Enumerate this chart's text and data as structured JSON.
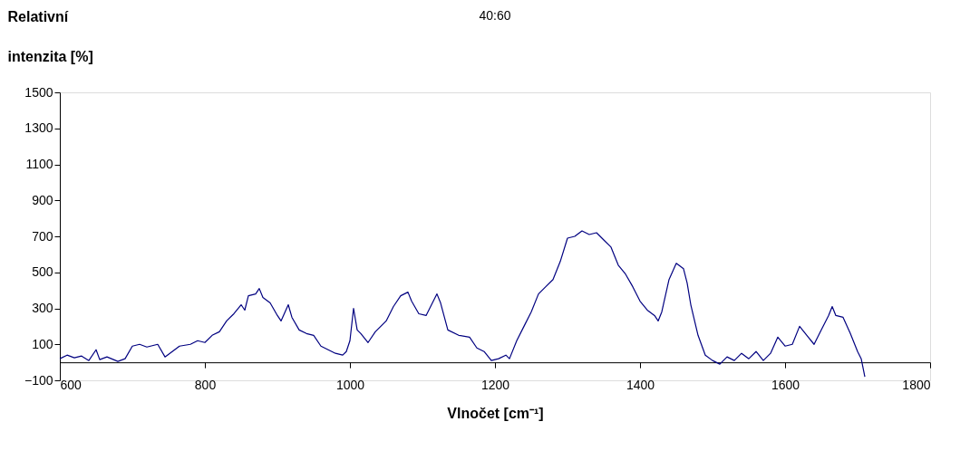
{
  "chart_data": {
    "type": "line",
    "title": "40:60",
    "xlabel": "Vlnočet [cm⁻¹]",
    "ylabel": "Relativní intenzita [%]",
    "xlim": [
      600,
      1800
    ],
    "xticks": [
      600,
      800,
      1000,
      1200,
      1400,
      1600,
      1800
    ],
    "ylim": [
      -100,
      1500
    ],
    "yticks": [
      -100,
      100,
      300,
      500,
      700,
      900,
      1100,
      1300,
      1500
    ],
    "grid": false,
    "marker": "none",
    "line_style": "solid",
    "series": [
      {
        "color": "#000080",
        "x": [
          600,
          610,
          620,
          630,
          640,
          650,
          655,
          665,
          680,
          690,
          700,
          710,
          720,
          735,
          745,
          755,
          765,
          780,
          790,
          800,
          810,
          820,
          830,
          840,
          850,
          855,
          860,
          870,
          875,
          880,
          890,
          900,
          905,
          915,
          920,
          930,
          940,
          950,
          960,
          970,
          980,
          990,
          995,
          1000,
          1005,
          1010,
          1015,
          1025,
          1035,
          1050,
          1060,
          1070,
          1080,
          1085,
          1095,
          1105,
          1115,
          1120,
          1125,
          1135,
          1150,
          1165,
          1175,
          1185,
          1195,
          1205,
          1215,
          1220,
          1230,
          1240,
          1250,
          1260,
          1270,
          1280,
          1290,
          1300,
          1310,
          1320,
          1330,
          1340,
          1350,
          1360,
          1370,
          1380,
          1390,
          1400,
          1410,
          1420,
          1425,
          1430,
          1440,
          1450,
          1460,
          1465,
          1470,
          1480,
          1490,
          1500,
          1510,
          1520,
          1530,
          1540,
          1550,
          1560,
          1570,
          1580,
          1590,
          1600,
          1610,
          1620,
          1630,
          1640,
          1650,
          1660,
          1665,
          1670,
          1680,
          1690,
          1700,
          1705,
          1710
        ],
        "values": [
          20,
          40,
          25,
          35,
          10,
          70,
          15,
          30,
          5,
          20,
          90,
          100,
          85,
          100,
          30,
          60,
          90,
          100,
          120,
          110,
          150,
          170,
          230,
          270,
          320,
          290,
          370,
          380,
          410,
          360,
          330,
          260,
          230,
          320,
          250,
          180,
          160,
          150,
          90,
          70,
          50,
          40,
          60,
          120,
          300,
          180,
          160,
          110,
          170,
          230,
          310,
          370,
          390,
          340,
          270,
          260,
          340,
          380,
          330,
          180,
          150,
          140,
          80,
          60,
          10,
          20,
          40,
          20,
          120,
          200,
          280,
          380,
          420,
          460,
          560,
          690,
          700,
          730,
          710,
          720,
          680,
          640,
          540,
          490,
          420,
          340,
          290,
          260,
          230,
          280,
          460,
          550,
          520,
          440,
          320,
          150,
          40,
          10,
          -10,
          30,
          10,
          50,
          20,
          60,
          10,
          50,
          140,
          90,
          100,
          200,
          150,
          100,
          180,
          260,
          310,
          260,
          250,
          160,
          60,
          20,
          -80
        ]
      }
    ]
  }
}
